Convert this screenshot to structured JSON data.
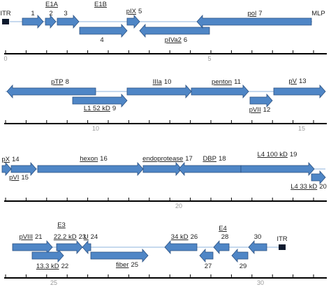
{
  "colors": {
    "arrow_fill": "#4f86c6",
    "arrow_stroke": "#2a4f7f",
    "genome_line": "#8db3dd",
    "scale_line": "#000000",
    "itr_box": "#0d1a2e",
    "label": "#222222",
    "tick_label": "#9a9a9a"
  },
  "rows": [
    {
      "name": "row-1",
      "scale_labels": [
        {
          "text": "0",
          "pos": 0
        },
        {
          "text": "5",
          "pos": 5
        }
      ],
      "itr": [
        {
          "text": "ITR",
          "label_side": "above"
        }
      ],
      "features": [
        {
          "label": "1",
          "underline": false,
          "dir": "right"
        },
        {
          "label": "E1A",
          "underline": true,
          "dir": "none"
        },
        {
          "label": "2",
          "underline": false,
          "dir": "right"
        },
        {
          "label": "3",
          "underline": false,
          "dir": "right"
        },
        {
          "label": "E1B",
          "underline": true,
          "dir": "none"
        },
        {
          "label": "4",
          "underline": false,
          "dir": "right"
        },
        {
          "label": "pIX",
          "underline": true,
          "num": "5",
          "dir": "right"
        },
        {
          "label": "pIVa2",
          "underline": true,
          "num": "6",
          "dir": "left"
        },
        {
          "label": "pol",
          "underline": true,
          "num": "7",
          "dir": "left"
        },
        {
          "label": "MLP",
          "underline": false,
          "dir": "none"
        }
      ]
    },
    {
      "name": "row-2",
      "scale_labels": [
        {
          "text": "10",
          "pos": 10
        },
        {
          "text": "15",
          "pos": 15
        }
      ],
      "itr": [],
      "features": [
        {
          "label": "pTP",
          "underline": true,
          "num": "8",
          "dir": "left"
        },
        {
          "label": "L1 52 kD",
          "underline": true,
          "num": "9",
          "dir": "right"
        },
        {
          "label": "IIIa",
          "underline": true,
          "num": "10",
          "dir": "right"
        },
        {
          "label": "penton",
          "underline": true,
          "num": "11",
          "dir": "right"
        },
        {
          "label": "pVII",
          "underline": true,
          "num": "12",
          "dir": "right"
        },
        {
          "label": "pV",
          "underline": true,
          "num": "13",
          "dir": "right"
        }
      ]
    },
    {
      "name": "row-3",
      "scale_labels": [
        {
          "text": "20",
          "pos": 20
        }
      ],
      "itr": [],
      "features": [
        {
          "label": "pX",
          "underline": true,
          "num": "14",
          "dir": "right"
        },
        {
          "label": "pVI",
          "underline": true,
          "num": "15",
          "dir": "right"
        },
        {
          "label": "hexon",
          "underline": true,
          "num": "16",
          "dir": "right"
        },
        {
          "label": "endoprotease",
          "underline": true,
          "num": "17",
          "dir": "right"
        },
        {
          "label": "DBP",
          "underline": true,
          "num": "18",
          "dir": "left"
        },
        {
          "label": "L4 100 kD",
          "underline": true,
          "num": "19",
          "dir": "right"
        },
        {
          "label": "L4 33 kD",
          "underline": true,
          "num": "20",
          "dir": "right"
        }
      ]
    },
    {
      "name": "row-4",
      "scale_labels": [
        {
          "text": "25",
          "pos": 25
        },
        {
          "text": "30",
          "pos": 30
        }
      ],
      "itr": [
        {
          "text": "ITR",
          "label_side": "above"
        }
      ],
      "features": [
        {
          "label": "pVIII",
          "underline": true,
          "num": "21",
          "dir": "right"
        },
        {
          "label": "13.3 kD",
          "underline": true,
          "num": "22",
          "dir": "right"
        },
        {
          "label": "E3",
          "underline": true,
          "dir": "none"
        },
        {
          "label": "22.2 kD",
          "underline": true,
          "num": "23",
          "dir": "right"
        },
        {
          "label": "U",
          "underline": true,
          "num": "24",
          "dir": "left"
        },
        {
          "label": "fiber",
          "underline": true,
          "num": "25",
          "dir": "right"
        },
        {
          "label": "34 kD",
          "underline": true,
          "num": "26",
          "dir": "left"
        },
        {
          "label": "27",
          "underline": false,
          "dir": "left"
        },
        {
          "label": "E4",
          "underline": true,
          "dir": "none"
        },
        {
          "label": "28",
          "underline": false,
          "dir": "left"
        },
        {
          "label": "29",
          "underline": false,
          "dir": "left"
        },
        {
          "label": "30",
          "underline": false,
          "dir": "left"
        }
      ]
    }
  ]
}
